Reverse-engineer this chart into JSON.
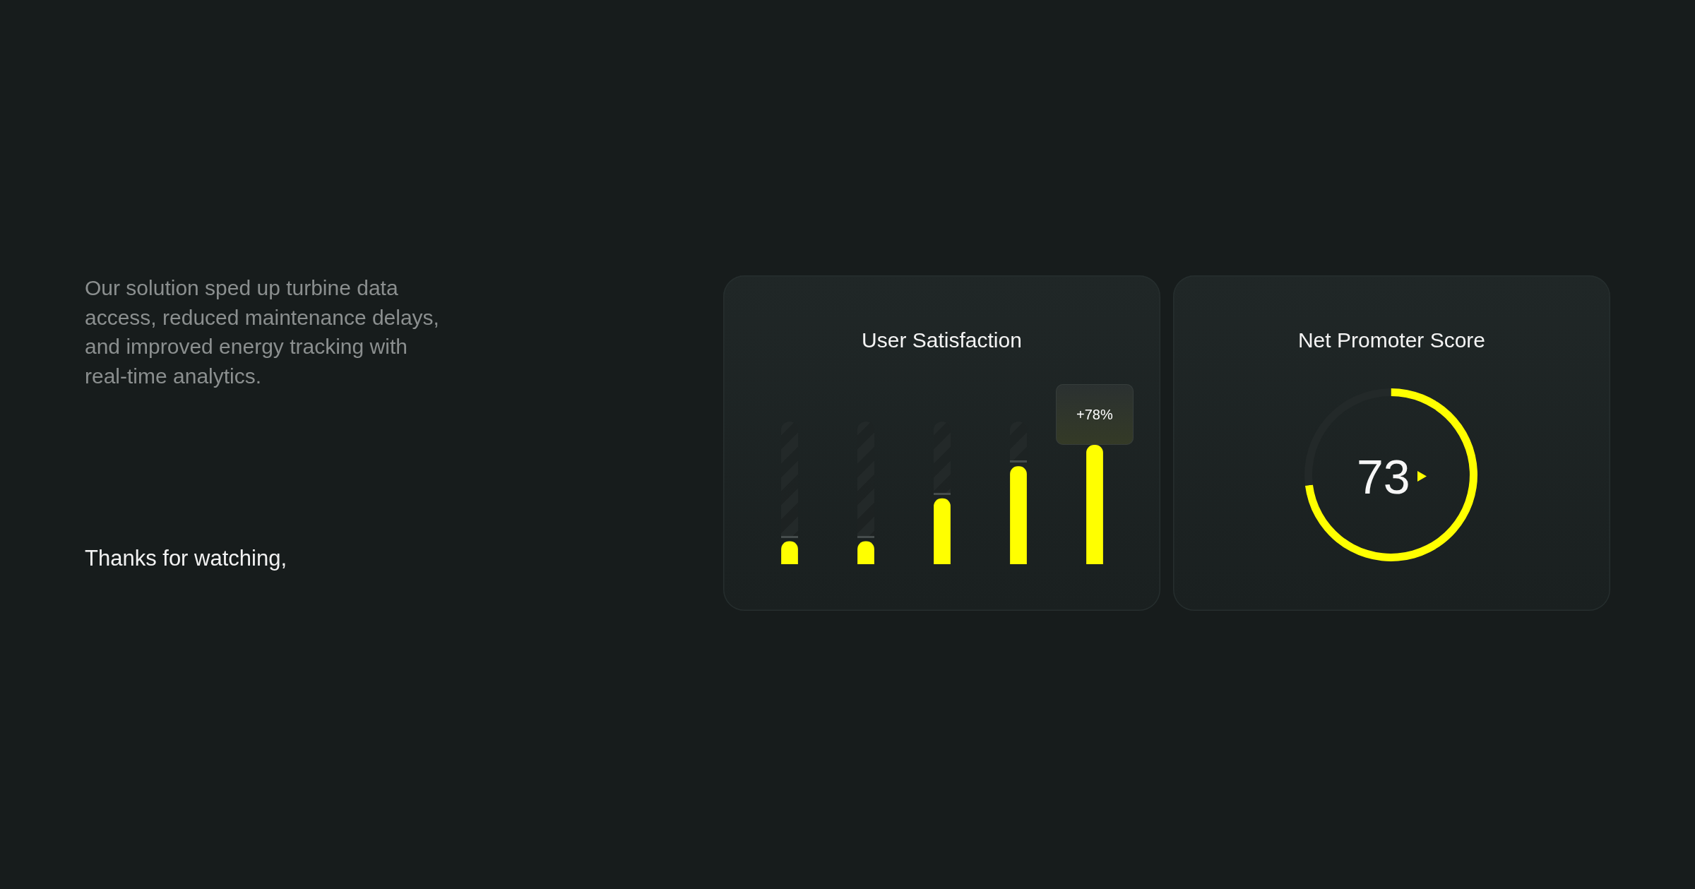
{
  "chart_data": [
    {
      "type": "other",
      "annotations": [
        "Our solution sped up turbine data access, reduced maintenance delays, and improved energy tracking with real-time analytics.",
        "Thanks for watching,"
      ]
    },
    {
      "type": "bar",
      "title": "User Satisfaction",
      "categories": [
        null,
        null,
        null,
        null,
        null
      ],
      "tick_labels": false,
      "color": "#ffff00",
      "values": [
        15,
        15,
        43,
        64,
        78
      ],
      "value_labels": [
        null,
        null,
        null,
        null,
        "+78%"
      ]
    },
    {
      "type": "donut",
      "title": "Net Promoter Score",
      "categories": [
        null,
        null
      ],
      "values": [
        73,
        27
      ],
      "colors": [
        "#ffff00",
        "#232929"
      ],
      "annotations": [
        "73"
      ]
    }
  ]
}
